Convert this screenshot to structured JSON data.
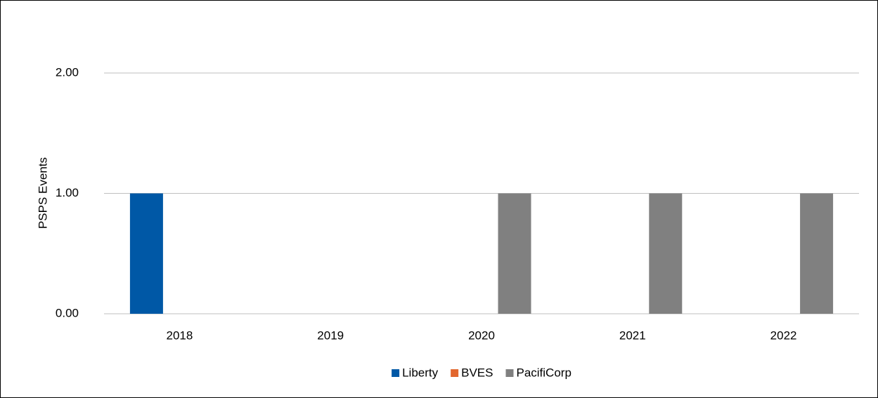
{
  "chart_data": {
    "type": "bar",
    "y_label": "PSPS Events",
    "categories": [
      "2018",
      "2019",
      "2020",
      "2021",
      "2022"
    ],
    "series": [
      {
        "name": "Liberty",
        "color": "#0058a6",
        "values": [
          1,
          0,
          0,
          0,
          0
        ]
      },
      {
        "name": "BVES",
        "color": "#e2672e",
        "values": [
          0,
          0,
          0,
          0,
          0
        ]
      },
      {
        "name": "PacifiCorp",
        "color": "#808080",
        "values": [
          0,
          0,
          1,
          1,
          1
        ]
      }
    ],
    "ylim": [
      0,
      2
    ],
    "yticks": [
      {
        "value": 0,
        "label": "0.00"
      },
      {
        "value": 1,
        "label": "1.00"
      },
      {
        "value": 2,
        "label": "2.00"
      }
    ],
    "grid": true,
    "legend": "bottom"
  }
}
